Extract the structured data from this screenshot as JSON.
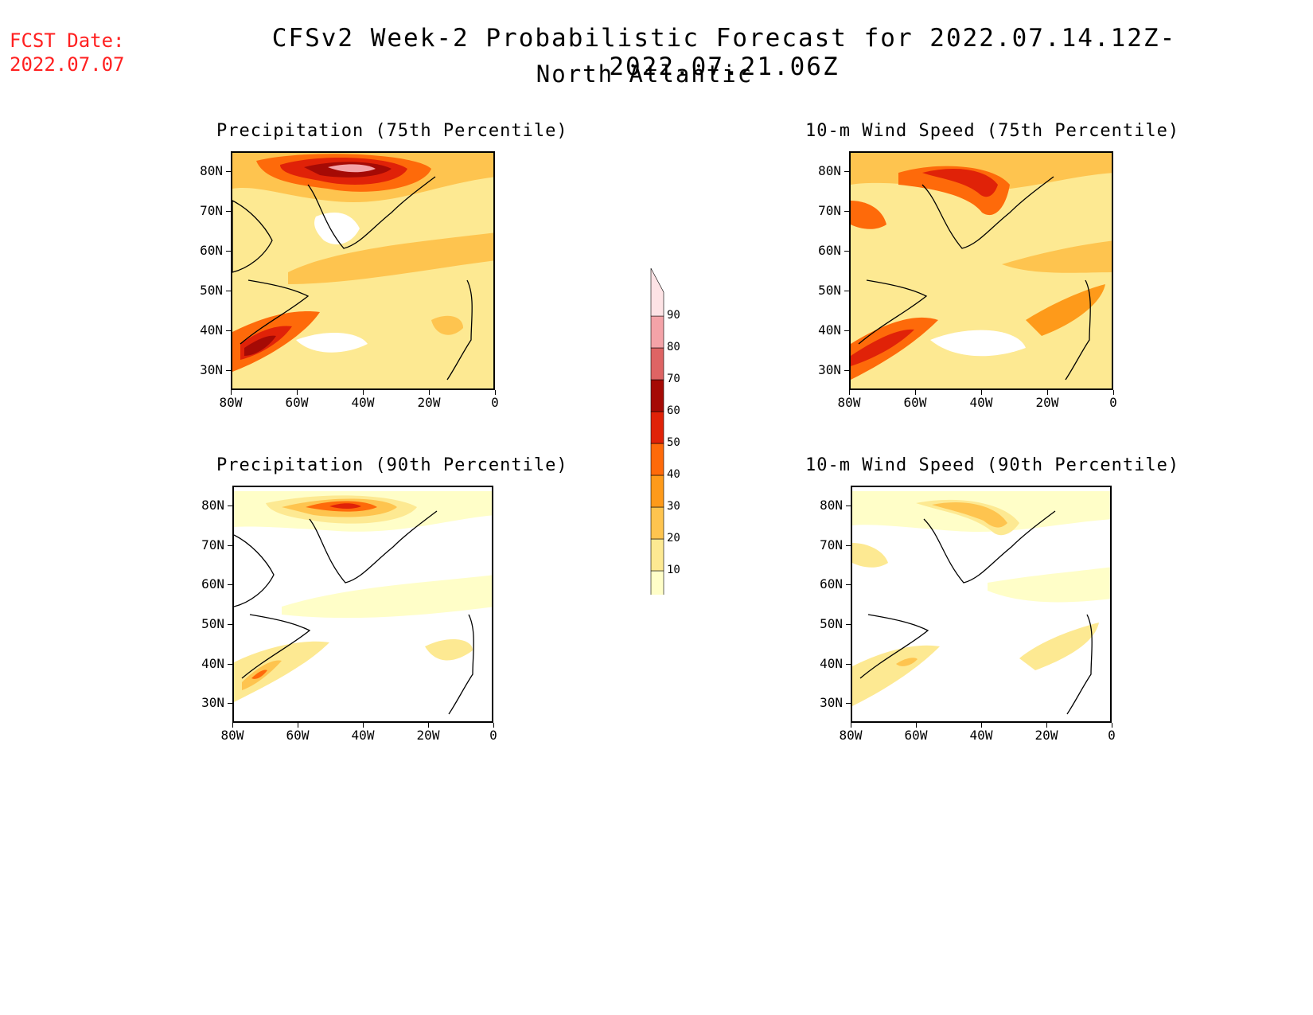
{
  "header": {
    "fcst_line1": "FCST Date:",
    "fcst_line2": "2022.07.07",
    "title": "CFSv2 Week-2 Probabilistic Forecast for 2022.07.14.12Z-2022.07.21.06Z",
    "subtitle": "North Atlantic"
  },
  "axes": {
    "lat_labels": [
      "80N",
      "70N",
      "60N",
      "50N",
      "40N",
      "30N"
    ],
    "lon_labels": [
      "80W",
      "60W",
      "40W",
      "20W",
      "0"
    ]
  },
  "panels": [
    {
      "id": "precip75",
      "title": "Precipitation (75th Percentile)"
    },
    {
      "id": "wind75",
      "title": "10-m Wind Speed (75th Percentile)"
    },
    {
      "id": "precip90",
      "title": "Precipitation (90th Percentile)"
    },
    {
      "id": "wind90",
      "title": "10-m Wind Speed (90th Percentile)"
    }
  ],
  "colorbar": {
    "levels": [
      "10",
      "20",
      "30",
      "40",
      "50",
      "60",
      "70",
      "80",
      "90"
    ],
    "colors": [
      "#fffec8",
      "#fde992",
      "#fec44f",
      "#fe9a1a",
      "#fe6a0a",
      "#e02208",
      "#a50a05",
      "#de6464",
      "#f4a3a8",
      "#fde3e5"
    ]
  }
}
